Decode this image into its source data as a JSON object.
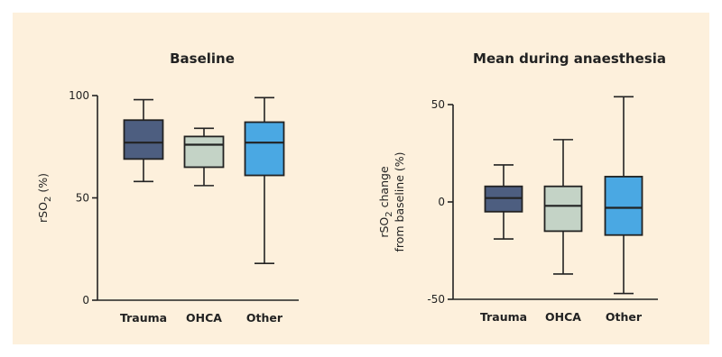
{
  "chart_data": [
    {
      "type": "boxplot",
      "title": "Baseline",
      "ylabel_parts": [
        "rSO",
        "2",
        " (%)"
      ],
      "ylabel2": "",
      "ylim": [
        0,
        100
      ],
      "yticks": [
        0,
        50,
        100
      ],
      "categories": [
        "Trauma",
        "OHCA",
        "Other"
      ],
      "boxes": [
        {
          "category": "Trauma",
          "min": 58,
          "q1": 69,
          "median": 77,
          "q3": 88,
          "max": 98,
          "color": "#4d5e80"
        },
        {
          "category": "OHCA",
          "min": 56,
          "q1": 65,
          "median": 76,
          "q3": 80,
          "max": 84,
          "color": "#c4d3c6"
        },
        {
          "category": "Other",
          "min": 18,
          "q1": 61,
          "median": 77,
          "q3": 87,
          "max": 99,
          "color": "#4aa8e3"
        }
      ]
    },
    {
      "type": "boxplot",
      "title": "Mean during anaesthesia",
      "ylabel_parts": [
        "rSO",
        "2",
        " change"
      ],
      "ylabel2": "from baseline (%)",
      "ylim": [
        -50,
        50
      ],
      "yticks": [
        -50,
        0,
        50
      ],
      "categories": [
        "Trauma",
        "OHCA",
        "Other"
      ],
      "boxes": [
        {
          "category": "Trauma",
          "min": -19,
          "q1": -5,
          "median": 2,
          "q3": 8,
          "max": 19,
          "color": "#4d5e80"
        },
        {
          "category": "OHCA",
          "min": -37,
          "q1": -15,
          "median": -2,
          "q3": 8,
          "max": 32,
          "color": "#c4d3c6"
        },
        {
          "category": "Other",
          "min": -47,
          "q1": -17,
          "median": -3,
          "q3": 13,
          "max": 54,
          "color": "#4aa8e3"
        }
      ]
    }
  ]
}
